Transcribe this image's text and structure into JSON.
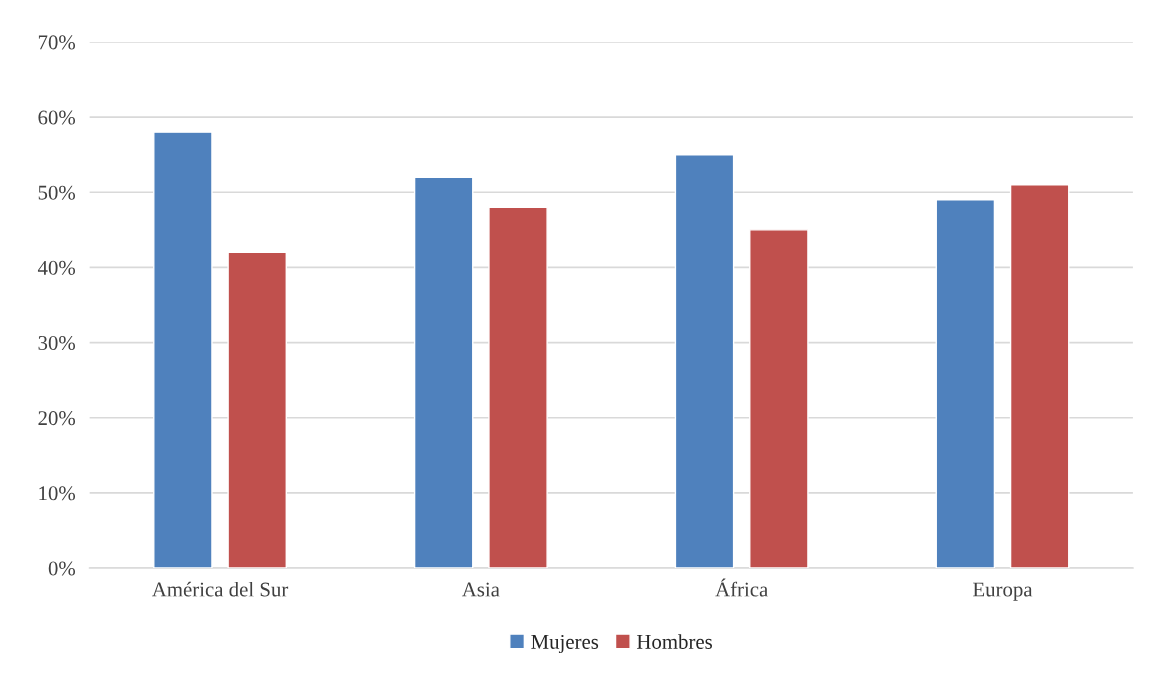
{
  "chart_data": {
    "type": "bar",
    "categories": [
      "América del Sur",
      "Asia",
      "África",
      "Europa"
    ],
    "series": [
      {
        "name": "Mujeres",
        "color": "#4f81bd",
        "values": [
          58,
          52,
          55,
          49
        ]
      },
      {
        "name": "Hombres",
        "color": "#c0504d",
        "values": [
          42,
          48,
          45,
          51
        ]
      }
    ],
    "ylim": [
      0,
      70
    ],
    "yticks": [
      {
        "value": 0,
        "label": "0%"
      },
      {
        "value": 10,
        "label": "10%"
      },
      {
        "value": 20,
        "label": "20%"
      },
      {
        "value": 30,
        "label": "30%"
      },
      {
        "value": 40,
        "label": "40%"
      },
      {
        "value": 50,
        "label": "50%"
      },
      {
        "value": 60,
        "label": "60%"
      },
      {
        "value": 70,
        "label": "70%"
      }
    ],
    "grid": "y",
    "legend": "bottom"
  }
}
